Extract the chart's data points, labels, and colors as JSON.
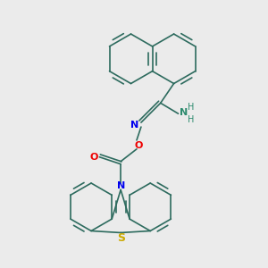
{
  "background_color": "#ebebeb",
  "bond_color": "#2d6b5e",
  "bond_width": 1.2,
  "atom_colors": {
    "N": "#0000ee",
    "O": "#ee0000",
    "S": "#ccaa00",
    "NH": "#2d8b6e",
    "C": "#000000"
  },
  "figsize": [
    3.0,
    3.0
  ],
  "dpi": 100
}
